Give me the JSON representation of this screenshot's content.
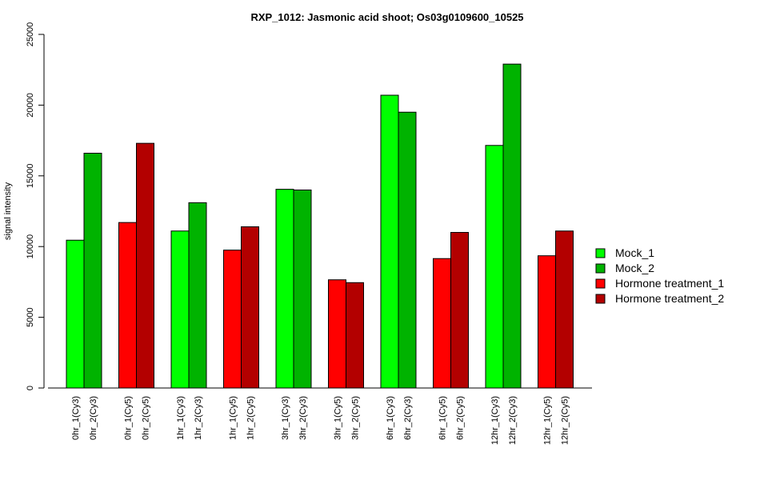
{
  "chart_data": {
    "type": "bar",
    "title": "RXP_1012: Jasmonic acid shoot; Os03g0109600_10525",
    "ylabel": "signal intensity",
    "xlabel": "",
    "ylim": [
      0,
      25000
    ],
    "yticks": [
      0,
      5000,
      10000,
      15000,
      20000,
      25000
    ],
    "grid": false,
    "legend_position": "right",
    "series": [
      {
        "name": "Mock_1",
        "color": "#00ff00"
      },
      {
        "name": "Mock_2",
        "color": "#00b300"
      },
      {
        "name": "Hormone treatment_1",
        "color": "#ff0000"
      },
      {
        "name": "Hormone treatment_2",
        "color": "#b30000"
      }
    ],
    "groups": [
      {
        "bars": [
          {
            "label": "0hr_1(Cy3)",
            "value": 10450,
            "series": 0
          },
          {
            "label": "0hr_2(Cy3)",
            "value": 16600,
            "series": 1
          }
        ]
      },
      {
        "bars": [
          {
            "label": "0hr_1(Cy5)",
            "value": 11700,
            "series": 2
          },
          {
            "label": "0hr_2(Cy5)",
            "value": 17300,
            "series": 3
          }
        ]
      },
      {
        "bars": [
          {
            "label": "1hr_1(Cy3)",
            "value": 11100,
            "series": 0
          },
          {
            "label": "1hr_2(Cy3)",
            "value": 13100,
            "series": 1
          }
        ]
      },
      {
        "bars": [
          {
            "label": "1hr_1(Cy5)",
            "value": 9750,
            "series": 2
          },
          {
            "label": "1hr_2(Cy5)",
            "value": 11400,
            "series": 3
          }
        ]
      },
      {
        "bars": [
          {
            "label": "3hr_1(Cy3)",
            "value": 14050,
            "series": 0
          },
          {
            "label": "3hr_2(Cy3)",
            "value": 14000,
            "series": 1
          }
        ]
      },
      {
        "bars": [
          {
            "label": "3hr_1(Cy5)",
            "value": 7650,
            "series": 2
          },
          {
            "label": "3hr_2(Cy5)",
            "value": 7450,
            "series": 3
          }
        ]
      },
      {
        "bars": [
          {
            "label": "6hr_1(Cy3)",
            "value": 20700,
            "series": 0
          },
          {
            "label": "6hr_2(Cy3)",
            "value": 19500,
            "series": 1
          }
        ]
      },
      {
        "bars": [
          {
            "label": "6hr_1(Cy5)",
            "value": 9150,
            "series": 2
          },
          {
            "label": "6hr_2(Cy5)",
            "value": 11000,
            "series": 3
          }
        ]
      },
      {
        "bars": [
          {
            "label": "12hr_1(Cy3)",
            "value": 17150,
            "series": 0
          },
          {
            "label": "12hr_2(Cy3)",
            "value": 22900,
            "series": 1
          }
        ]
      },
      {
        "bars": [
          {
            "label": "12hr_1(Cy5)",
            "value": 9350,
            "series": 2
          },
          {
            "label": "12hr_2(Cy5)",
            "value": 11100,
            "series": 3
          }
        ]
      }
    ]
  }
}
